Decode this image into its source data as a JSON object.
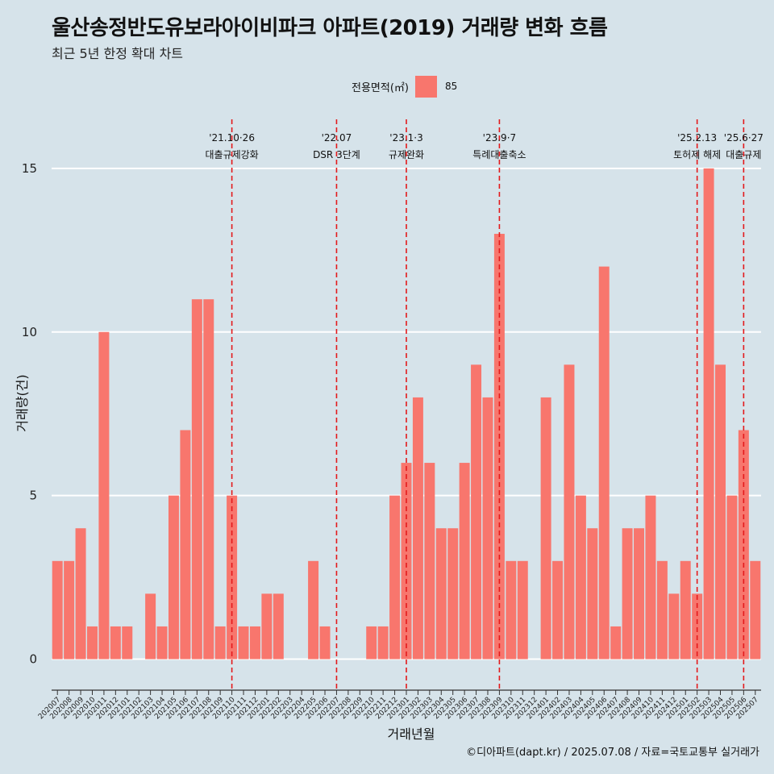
{
  "title": "울산송정반도유보라아이비파크 아파트(2019) 거래량 변화 흐름",
  "subtitle": "최근 5년 한정 확대 차트",
  "caption": "©디아파트(dapt.kr) / 2025.07.08 / 자료=국토교통부 실거래가",
  "colors": {
    "background": "#d6e3ea",
    "bar": "#f8766d",
    "event_line": "#e31a1c",
    "grid": "#ffffff"
  },
  "legend": {
    "title": "전용면적(㎡)",
    "label": "85"
  },
  "chart_data": {
    "type": "bar",
    "xlabel": "거래년월",
    "ylabel": "거래량(건)",
    "ylim": [
      -0.8,
      16.5
    ],
    "yticks": [
      0,
      5,
      10,
      15
    ],
    "grid": true,
    "legend_position": "top",
    "categories": [
      "202007",
      "202008",
      "202009",
      "202010",
      "202011",
      "202012",
      "202101",
      "202102",
      "202103",
      "202104",
      "202105",
      "202106",
      "202107",
      "202108",
      "202109",
      "202110",
      "202111",
      "202112",
      "202201",
      "202202",
      "202203",
      "202204",
      "202205",
      "202206",
      "202207",
      "202208",
      "202209",
      "202210",
      "202211",
      "202212",
      "202301",
      "202302",
      "202303",
      "202304",
      "202305",
      "202306",
      "202307",
      "202308",
      "202309",
      "202310",
      "202311",
      "202312",
      "202401",
      "202402",
      "202403",
      "202404",
      "202405",
      "202406",
      "202407",
      "202408",
      "202409",
      "202410",
      "202411",
      "202412",
      "202501",
      "202502",
      "202503",
      "202504",
      "202505",
      "202506",
      "202507"
    ],
    "series": [
      {
        "name": "85",
        "values": [
          3,
          3,
          4,
          1,
          10,
          1,
          1,
          0,
          2,
          1,
          5,
          7,
          11,
          11,
          1,
          5,
          1,
          1,
          2,
          2,
          0,
          0,
          3,
          1,
          0,
          0,
          0,
          1,
          1,
          5,
          6,
          8,
          6,
          4,
          4,
          6,
          9,
          8,
          13,
          3,
          3,
          0,
          8,
          3,
          9,
          5,
          4,
          12,
          1,
          4,
          4,
          5,
          3,
          2,
          3,
          2,
          15,
          9,
          5,
          7,
          3
        ]
      }
    ],
    "events": [
      {
        "x": "202110",
        "date": "'21.10·26",
        "label": "대출규제강화"
      },
      {
        "x": "202207",
        "date": "'22.07",
        "label": "DSR 3단계"
      },
      {
        "x": "202301",
        "date": "'23.1·3",
        "label": "규제완화"
      },
      {
        "x": "202309",
        "date": "'23.9·7",
        "label": "특례대출축소"
      },
      {
        "x": "202502",
        "date": "'25.2.13",
        "label": "토허제 해제"
      },
      {
        "x": "202506",
        "date": "'25.6·27",
        "label": "대출규제"
      }
    ]
  }
}
